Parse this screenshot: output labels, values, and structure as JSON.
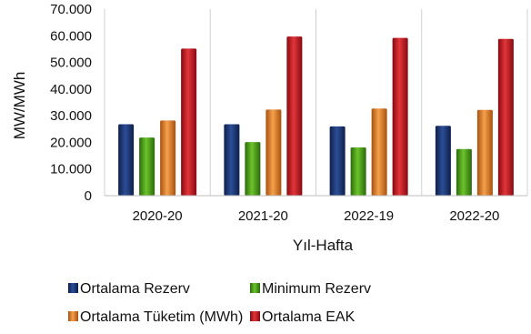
{
  "chart_data": {
    "type": "bar",
    "title": "",
    "xlabel": "Yıl-Hafta",
    "ylabel": "MW/MWh",
    "ylim": [
      0,
      70000
    ],
    "yticks": [
      0,
      10000,
      20000,
      30000,
      40000,
      50000,
      60000,
      70000
    ],
    "ytick_labels": [
      "0",
      "10.000",
      "20.000",
      "30.000",
      "40.000",
      "50.000",
      "60.000",
      "70.000"
    ],
    "categories": [
      "2020-20",
      "2021-20",
      "2022-19",
      "2022-20"
    ],
    "grid": "vertical",
    "legend_position": "bottom",
    "series": [
      {
        "name": "Ortalama Rezerv",
        "color": "#1f3a78",
        "values": [
          26800,
          26800,
          26000,
          26200
        ]
      },
      {
        "name": "Minimum Rezerv",
        "color": "#4a9a1a",
        "values": [
          21800,
          20100,
          18100,
          17500
        ]
      },
      {
        "name": "Ortalama Tüketim (MWh)",
        "color": "#e07b25",
        "values": [
          28200,
          32300,
          32700,
          32200
        ]
      },
      {
        "name": "Ortalama EAK",
        "color": "#c4151c",
        "values": [
          55200,
          59700,
          59200,
          58800
        ]
      }
    ]
  }
}
